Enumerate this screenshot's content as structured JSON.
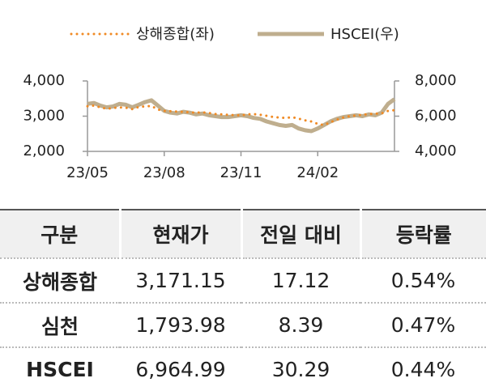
{
  "chart_data": {
    "type": "line",
    "categories": [
      "23/05",
      null,
      null,
      null,
      null,
      null,
      null,
      null,
      null,
      null,
      null,
      null,
      "23/08",
      null,
      null,
      null,
      null,
      null,
      null,
      null,
      null,
      null,
      null,
      null,
      "23/11",
      null,
      null,
      null,
      null,
      null,
      null,
      null,
      null,
      null,
      null,
      null,
      "24/02",
      null,
      null,
      null,
      null,
      null,
      null,
      null,
      null,
      null,
      null,
      null,
      null
    ],
    "series": [
      {
        "name": "상해종합(좌)",
        "color": "#f08a24",
        "line_style": "dotted",
        "axis": "y",
        "values": [
          3280,
          3300,
          3250,
          3210,
          3230,
          3250,
          3240,
          3200,
          3260,
          3280,
          3290,
          3190,
          3150,
          3140,
          3130,
          3120,
          3110,
          3100,
          3110,
          3090,
          3060,
          3050,
          3040,
          3030,
          3020,
          3050,
          3060,
          3040,
          3010,
          2980,
          2960,
          2950,
          2970,
          2930,
          2880,
          2850,
          2780,
          2750,
          2830,
          2900,
          2960,
          3000,
          3020,
          3040,
          3060,
          3070,
          3080,
          3150,
          3171
        ]
      },
      {
        "name": "HSCEI(우)",
        "color": "#bfae8e",
        "line_style": "solid",
        "axis": "y2",
        "values": [
          6700,
          6750,
          6600,
          6500,
          6550,
          6700,
          6650,
          6500,
          6650,
          6800,
          6900,
          6600,
          6300,
          6200,
          6150,
          6250,
          6200,
          6100,
          6150,
          6050,
          6000,
          5950,
          5950,
          6000,
          6050,
          6000,
          5900,
          5850,
          5700,
          5600,
          5500,
          5450,
          5500,
          5300,
          5200,
          5150,
          5300,
          5500,
          5700,
          5850,
          5950,
          6000,
          6050,
          6000,
          6100,
          6050,
          6200,
          6700,
          6965
        ]
      }
    ],
    "ylim": [
      2000,
      4000
    ],
    "yticks": [
      {
        "value": 2000,
        "label": "2,000"
      },
      {
        "value": 3000,
        "label": "3,000"
      },
      {
        "value": 4000,
        "label": "4,000"
      }
    ],
    "y2lim": [
      4000,
      8000
    ],
    "y2ticks": [
      {
        "value": 4000,
        "label": "4,000"
      },
      {
        "value": 6000,
        "label": "6,000"
      },
      {
        "value": 8000,
        "label": "8,000"
      }
    ],
    "legend": "top"
  },
  "table": {
    "header": [
      "구분",
      "현재가",
      "전일 대비",
      "등락률"
    ],
    "rows": [
      [
        "상해종합",
        "3,171.15",
        "17.12",
        "0.54%"
      ],
      [
        "심천",
        "1,793.98",
        "8.39",
        "0.47%"
      ],
      [
        "HSCEI",
        "6,964.99",
        "30.29",
        "0.44%"
      ]
    ]
  }
}
